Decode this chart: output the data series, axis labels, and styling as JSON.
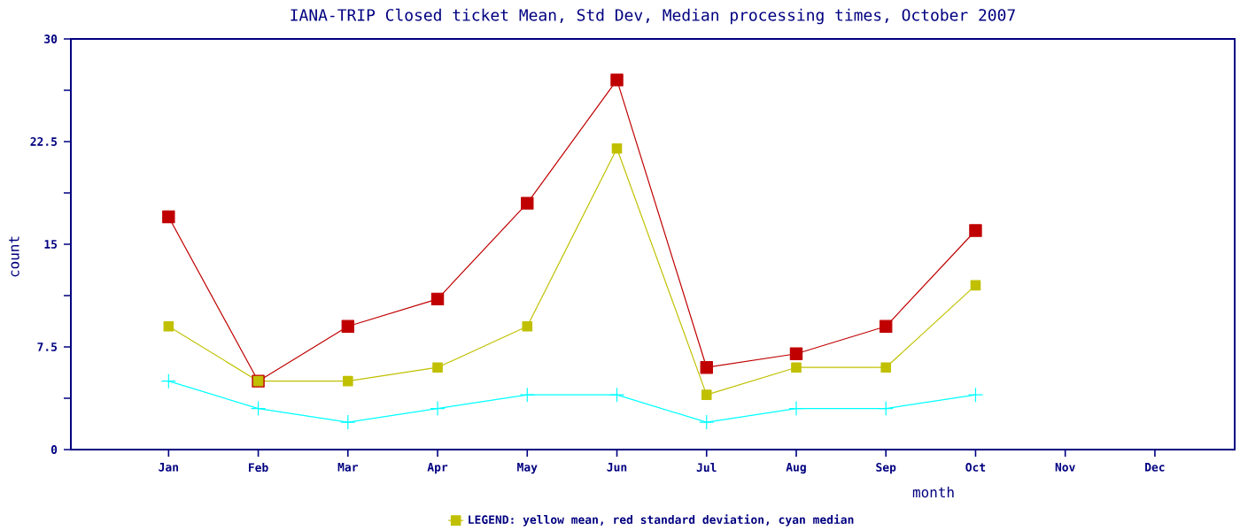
{
  "chart_data": {
    "type": "line",
    "title": "IANA-TRIP Closed ticket Mean, Std Dev, Median processing times, October 2007",
    "xlabel": "month",
    "ylabel": "count",
    "categories": [
      "Jan",
      "Feb",
      "Mar",
      "Apr",
      "May",
      "Jun",
      "Jul",
      "Aug",
      "Sep",
      "Oct",
      "Nov",
      "Dec"
    ],
    "series": [
      {
        "name": "LEGEND: yellow mean, red standard deviation, cyan median",
        "color": "#c0c000",
        "marker": "square",
        "values": [
          9,
          5,
          5,
          6,
          9,
          22,
          4,
          6,
          6,
          12,
          null,
          null
        ]
      },
      {
        "color": "#c00000",
        "marker": "square",
        "values": [
          17,
          5,
          9,
          11,
          18,
          27,
          6,
          7,
          9,
          16,
          null,
          null
        ]
      },
      {
        "color": "#00ffff",
        "marker": "cross",
        "values": [
          5,
          3,
          2,
          3,
          4,
          4,
          2,
          3,
          3,
          4,
          null,
          null
        ]
      }
    ],
    "ylim": [
      0,
      30
    ],
    "yticks": [
      0,
      {
        "value": 3.75,
        "label": null
      },
      7.5,
      {
        "value": 11.25,
        "label": null
      },
      15,
      {
        "value": 18.75,
        "label": null
      },
      22.5,
      {
        "value": 26.25,
        "label": null
      },
      30
    ],
    "legend": "bottom",
    "grid": false,
    "line_style": "solid"
  }
}
